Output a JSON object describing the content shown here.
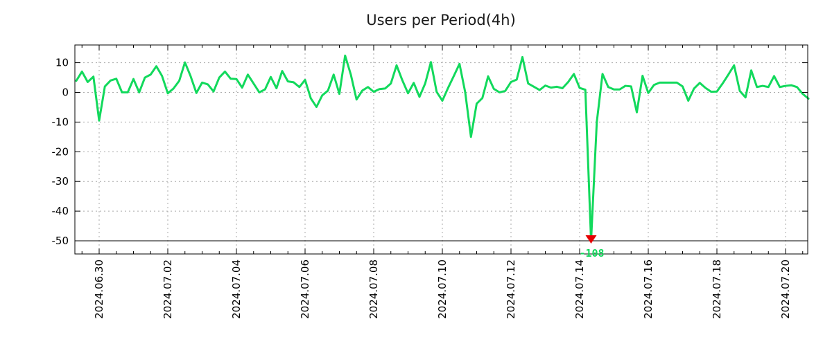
{
  "chart_data": {
    "type": "line",
    "title": "Users per Period(4h)",
    "x_start": "2024-06-29 08:00",
    "x_step_hours": 4,
    "x_tick_labels": [
      "2024.06.30",
      "2024.07.02",
      "2024.07.04",
      "2024.07.06",
      "2024.07.08",
      "2024.07.10",
      "2024.07.12",
      "2024.07.14",
      "2024.07.16",
      "2024.07.18",
      "2024.07.20"
    ],
    "x_minor_tick_hours": 12,
    "y_ticks": [
      10,
      0,
      -10,
      -20,
      -30,
      -40,
      -50
    ],
    "ylim": [
      -54.4,
      16
    ],
    "clip_floor": -50,
    "grid": "dotted",
    "legend": "none",
    "series": [
      {
        "name": "users",
        "values": [
          3.9,
          7,
          3.5,
          5.3,
          -9.5,
          2,
          4,
          4.6,
          0,
          0,
          4.5,
          0,
          5,
          6,
          8.8,
          5.5,
          -0.3,
          1.3,
          3.9,
          10.1,
          5.4,
          -0.2,
          3.3,
          2.7,
          0.3,
          5,
          7,
          4.6,
          4.5,
          1.6,
          6,
          3,
          0,
          1,
          5.2,
          1.4,
          7.2,
          3.7,
          3.4,
          1.8,
          4.2,
          -2,
          -4.9,
          -1,
          0.6,
          6,
          -0.5,
          12.4,
          6,
          -2.4,
          0.6,
          1.8,
          0.2,
          1.1,
          1.3,
          3,
          9.1,
          4.1,
          -0.3,
          3.2,
          -1.5,
          3,
          10.2,
          0.2,
          -2.8,
          1.5,
          5.5,
          9.6,
          0,
          -15,
          -3.8,
          -1.9,
          5.4,
          1.2,
          0,
          0.5,
          3.5,
          4.3,
          11.9,
          3,
          1.9,
          0.8,
          2.3,
          1.6,
          1.9,
          1.4,
          3.5,
          6.2,
          1.5,
          0.9,
          -108,
          -10,
          6.2,
          1.8,
          1,
          1,
          2.2,
          2,
          -6.7,
          5.6,
          -0.2,
          2.5,
          3.3,
          3.3,
          3.3,
          3.3,
          2,
          -2.8,
          1.3,
          3.2,
          1.5,
          0.2,
          0.3,
          3,
          6,
          9.1,
          0.5,
          -1.7,
          7.4,
          1.8,
          2.2,
          1.8,
          5.5,
          1.8,
          2.2,
          2.4,
          1.8,
          -0.5,
          -2.1
        ]
      }
    ],
    "annotation": {
      "text": "-108",
      "min_value": -108,
      "marker": "down-arrow"
    }
  },
  "colors": {
    "line": "#12d95c",
    "annotation_text": "#12d95c",
    "clip_arrow": "#e60000",
    "grid": "#a9a9a9",
    "axis": "#000000",
    "background": "#ffffff",
    "title": "#1a1a1a"
  }
}
